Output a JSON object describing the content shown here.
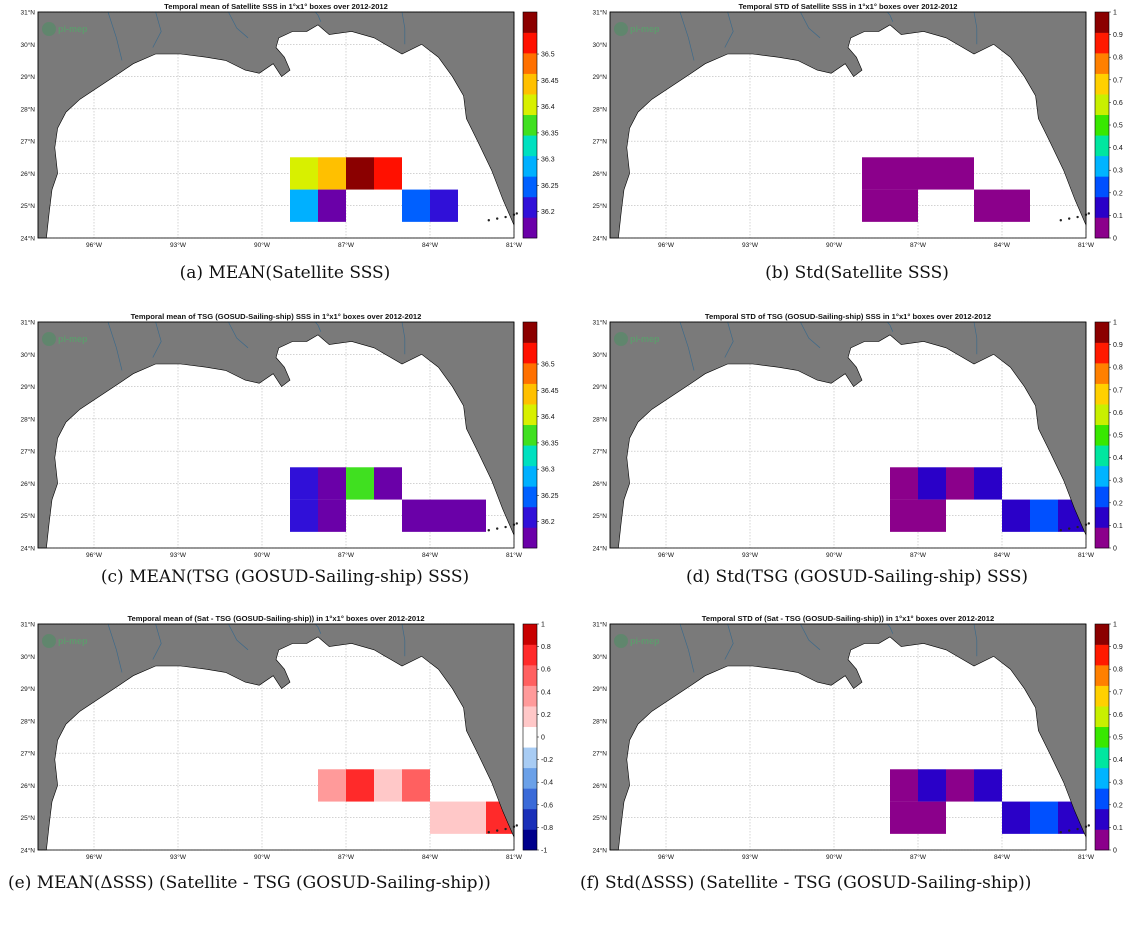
{
  "axes": {
    "x_ticks": [
      "96°W",
      "93°W",
      "90°W",
      "87°W",
      "84°W",
      "81°W"
    ],
    "y_ticks": [
      "24°N",
      "25°N",
      "26°N",
      "27°N",
      "28°N",
      "29°N",
      "30°N",
      "31°N"
    ],
    "xlim_lon": [
      -98,
      -81
    ],
    "ylim_lat": [
      24,
      31
    ]
  },
  "logo_text": "pi-mep",
  "colors": {
    "land": "#7a7a7a",
    "ocean": "#ffffff",
    "grid": "#b8b8b8",
    "std_scale": [
      "#8b008b",
      "#2a00c8",
      "#0050ff",
      "#00b4ff",
      "#00e6a0",
      "#38e800",
      "#c8f000",
      "#ffd000",
      "#ff8000",
      "#ff1a00",
      "#8b0000"
    ],
    "mean_scale": [
      "#6a00a8",
      "#3010d8",
      "#0060ff",
      "#00b0ff",
      "#00e0c0",
      "#40e020",
      "#d8f000",
      "#ffc000",
      "#ff7000",
      "#ff1000",
      "#8b0000"
    ],
    "diff_scale": [
      "#00008b",
      "#1a2fb8",
      "#3a6ad8",
      "#6aa0e8",
      "#a8ccf4",
      "#ffffff",
      "#ffc8c8",
      "#ff9a9a",
      "#ff6060",
      "#ff2a2a",
      "#c80000"
    ]
  },
  "chart_data": [
    {
      "type": "heatmap",
      "title": "Temporal mean of Satellite SSS in 1°x1° boxes over 2012-2012",
      "caption": "(a) MEAN(Satellite SSS)",
      "colorbar_ticks": [
        "36.5",
        "36.45",
        "36.4",
        "36.35",
        "36.3",
        "36.25",
        "36.2"
      ],
      "colorbar_range": [
        36.15,
        36.58
      ],
      "scale": "mean_scale",
      "cells": [
        {
          "lon": -88.5,
          "lat": 26,
          "value": 36.42
        },
        {
          "lon": -87.5,
          "lat": 26,
          "value": 36.46
        },
        {
          "lon": -86.5,
          "lat": 26,
          "value": 36.57
        },
        {
          "lon": -85.5,
          "lat": 26,
          "value": 36.52
        },
        {
          "lon": -88.5,
          "lat": 25,
          "value": 36.3
        },
        {
          "lon": -87.5,
          "lat": 25,
          "value": 36.17
        },
        {
          "lon": -84.5,
          "lat": 25,
          "value": 36.23
        },
        {
          "lon": -83.5,
          "lat": 25,
          "value": 36.19
        }
      ]
    },
    {
      "type": "heatmap",
      "title": "Temporal STD of Satellite SSS in 1°x1° boxes over 2012-2012",
      "caption": "(b) Std(Satellite SSS)",
      "colorbar_ticks": [
        "1",
        "0.9",
        "0.8",
        "0.7",
        "0.6",
        "0.5",
        "0.4",
        "0.3",
        "0.2",
        "0.1",
        "0"
      ],
      "colorbar_range": [
        0,
        1
      ],
      "scale": "std_scale",
      "cells": [
        {
          "lon": -88.5,
          "lat": 26,
          "value": 0
        },
        {
          "lon": -87.5,
          "lat": 26,
          "value": 0
        },
        {
          "lon": -86.5,
          "lat": 26,
          "value": 0
        },
        {
          "lon": -85.5,
          "lat": 26,
          "value": 0
        },
        {
          "lon": -88.5,
          "lat": 25,
          "value": 0
        },
        {
          "lon": -87.5,
          "lat": 25,
          "value": 0
        },
        {
          "lon": -84.5,
          "lat": 25,
          "value": 0
        },
        {
          "lon": -83.5,
          "lat": 25,
          "value": 0
        }
      ]
    },
    {
      "type": "heatmap",
      "title": "Temporal mean of TSG (GOSUD-Sailing-ship) SSS in 1°x1° boxes over 2012-2012",
      "caption": "(c) MEAN(TSG (GOSUD-Sailing-ship) SSS)",
      "colorbar_ticks": [
        "36.5",
        "36.45",
        "36.4",
        "36.35",
        "36.3",
        "36.25",
        "36.2"
      ],
      "colorbar_range": [
        36.15,
        36.58
      ],
      "scale": "mean_scale",
      "cells": [
        {
          "lon": -88.5,
          "lat": 26,
          "value": 36.18
        },
        {
          "lon": -87.5,
          "lat": 26,
          "value": 36.16
        },
        {
          "lon": -86.5,
          "lat": 26,
          "value": 36.35
        },
        {
          "lon": -85.5,
          "lat": 26,
          "value": 36.16
        },
        {
          "lon": -88.5,
          "lat": 25,
          "value": 36.18
        },
        {
          "lon": -87.5,
          "lat": 25,
          "value": 36.16
        },
        {
          "lon": -84.5,
          "lat": 25,
          "value": 36.16
        },
        {
          "lon": -83.5,
          "lat": 25,
          "value": 36.16
        },
        {
          "lon": -82.5,
          "lat": 25,
          "value": 36.16
        }
      ]
    },
    {
      "type": "heatmap",
      "title": "Temporal STD of TSG (GOSUD-Sailing-ship) SSS in 1°x1° boxes over 2012-2012",
      "caption": "(d) Std(TSG (GOSUD-Sailing-ship) SSS)",
      "colorbar_ticks": [
        "1",
        "0.9",
        "0.8",
        "0.7",
        "0.6",
        "0.5",
        "0.4",
        "0.3",
        "0.2",
        "0.1",
        "0"
      ],
      "colorbar_range": [
        0,
        1
      ],
      "scale": "std_scale",
      "cells": [
        {
          "lon": -87.5,
          "lat": 26,
          "value": 0
        },
        {
          "lon": -86.5,
          "lat": 26,
          "value": 0.12
        },
        {
          "lon": -85.5,
          "lat": 26,
          "value": 0
        },
        {
          "lon": -84.5,
          "lat": 26,
          "value": 0.12
        },
        {
          "lon": -87.5,
          "lat": 25,
          "value": 0
        },
        {
          "lon": -86.5,
          "lat": 25,
          "value": 0
        },
        {
          "lon": -83.5,
          "lat": 25,
          "value": 0.13
        },
        {
          "lon": -82.5,
          "lat": 25,
          "value": 0.22
        },
        {
          "lon": -81.5,
          "lat": 25,
          "value": 0.13
        }
      ]
    },
    {
      "type": "heatmap",
      "title": "Temporal mean of (Sat - TSG (GOSUD-Sailing-ship)) in 1°x1° boxes over 2012-2012",
      "caption": "(e) MEAN(ΔSSS) (Satellite - TSG (GOSUD-Sailing-ship))",
      "colorbar_ticks": [
        "1",
        "0.8",
        "0.6",
        "0.4",
        "0.2",
        "0",
        "-0.2",
        "-0.4",
        "-0.6",
        "-0.8",
        "-1"
      ],
      "colorbar_range": [
        -1,
        1
      ],
      "scale": "diff_scale",
      "cells": [
        {
          "lon": -87.5,
          "lat": 26,
          "value": 0.45
        },
        {
          "lon": -86.5,
          "lat": 26,
          "value": 0.8
        },
        {
          "lon": -85.5,
          "lat": 26,
          "value": 0.2
        },
        {
          "lon": -84.5,
          "lat": 26,
          "value": 0.65
        },
        {
          "lon": -83.5,
          "lat": 25,
          "value": 0.2
        },
        {
          "lon": -82.5,
          "lat": 25,
          "value": 0.2
        },
        {
          "lon": -81.5,
          "lat": 25,
          "value": 0.85
        }
      ]
    },
    {
      "type": "heatmap",
      "title": "Temporal STD of (Sat - TSG (GOSUD-Sailing-ship)) in 1°x1° boxes over 2012-2012",
      "caption": "(f) Std(ΔSSS) (Satellite - TSG (GOSUD-Sailing-ship))",
      "colorbar_ticks": [
        "1",
        "0.9",
        "0.8",
        "0.7",
        "0.6",
        "0.5",
        "0.4",
        "0.3",
        "0.2",
        "0.1",
        "0"
      ],
      "colorbar_range": [
        0,
        1
      ],
      "scale": "std_scale",
      "cells": [
        {
          "lon": -87.5,
          "lat": 26,
          "value": 0
        },
        {
          "lon": -86.5,
          "lat": 26,
          "value": 0.12
        },
        {
          "lon": -85.5,
          "lat": 26,
          "value": 0
        },
        {
          "lon": -84.5,
          "lat": 26,
          "value": 0.12
        },
        {
          "lon": -87.5,
          "lat": 25,
          "value": 0
        },
        {
          "lon": -86.5,
          "lat": 25,
          "value": 0
        },
        {
          "lon": -83.5,
          "lat": 25,
          "value": 0.13
        },
        {
          "lon": -82.5,
          "lat": 25,
          "value": 0.22
        },
        {
          "lon": -81.5,
          "lat": 25,
          "value": 0.13
        }
      ]
    }
  ]
}
